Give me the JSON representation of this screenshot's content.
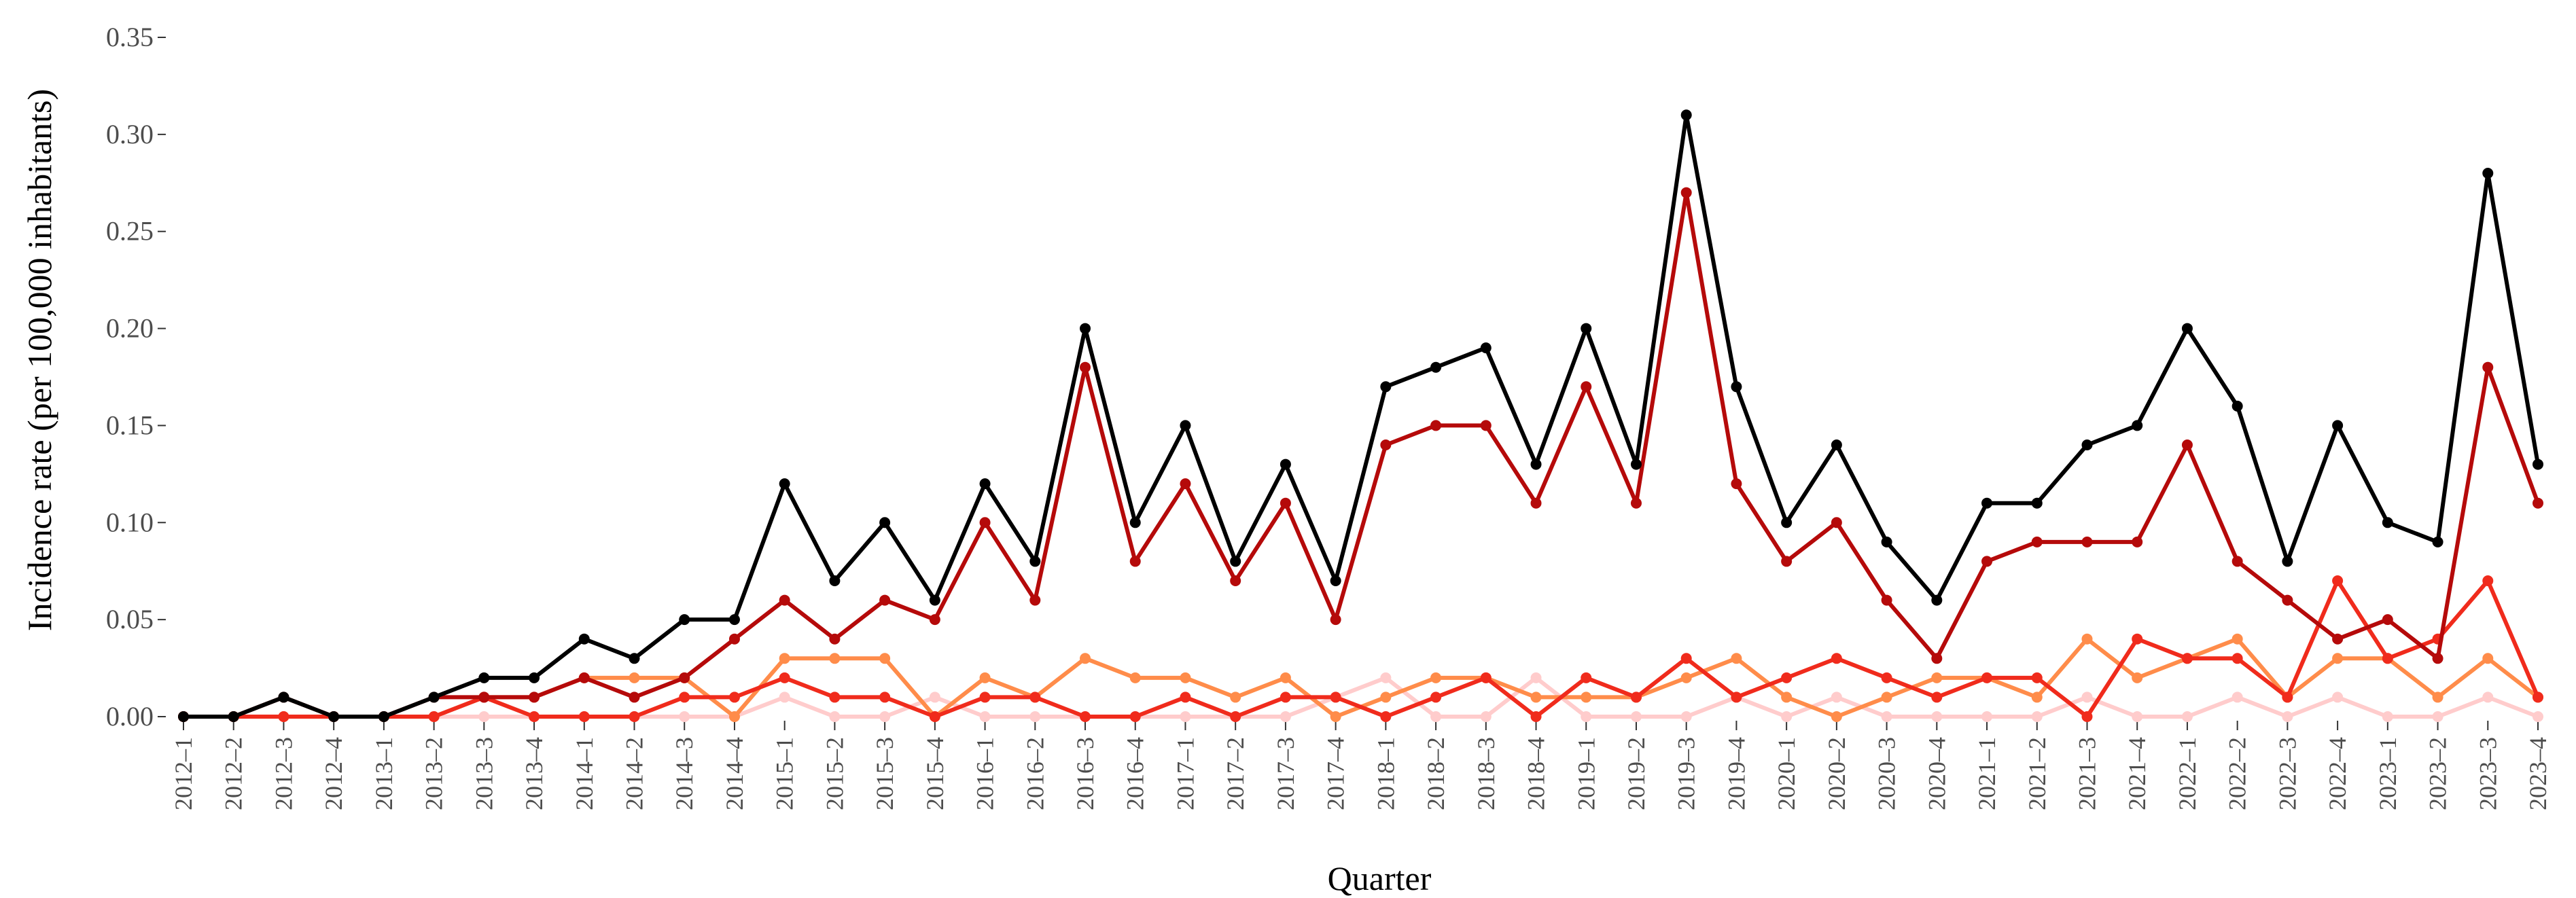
{
  "chart_data": {
    "type": "line",
    "title": "",
    "xlabel": "Quarter",
    "ylabel": "Incidence rate (per 100,000 inhabitants)",
    "ylim": [
      0,
      0.35
    ],
    "yticks": [
      0.0,
      0.05,
      0.1,
      0.15,
      0.2,
      0.25,
      0.3,
      0.35
    ],
    "grid": false,
    "legend": "none",
    "categories": [
      "2012–1",
      "2012–2",
      "2012–3",
      "2012–4",
      "2013–1",
      "2013–2",
      "2013–3",
      "2013–4",
      "2014–1",
      "2014–2",
      "2014–3",
      "2014–4",
      "2015–1",
      "2015–2",
      "2015–3",
      "2015–4",
      "2016–1",
      "2016–2",
      "2016–3",
      "2016–4",
      "2017–1",
      "2017–2",
      "2017–3",
      "2017–4",
      "2018–1",
      "2018–2",
      "2018–3",
      "2018–4",
      "2019–1",
      "2019–2",
      "2019–3",
      "2019–4",
      "2020–1",
      "2020–2",
      "2020–3",
      "2020–4",
      "2021–1",
      "2021–2",
      "2021–3",
      "2021–4",
      "2022–1",
      "2022–2",
      "2022–3",
      "2022–4",
      "2023–1",
      "2023–2",
      "2023–3",
      "2023–4"
    ],
    "series": [
      {
        "color": "#ffcccc",
        "values": [
          0,
          0,
          0,
          0,
          0,
          0,
          0,
          0,
          0,
          0,
          0,
          0,
          0.01,
          0,
          0,
          0.01,
          0,
          0,
          0,
          0,
          0,
          0,
          0,
          0.01,
          0.02,
          0,
          0,
          0.02,
          0,
          0,
          0,
          0.01,
          0,
          0.01,
          0,
          0,
          0,
          0,
          0.01,
          0,
          0,
          0.01,
          0,
          0.01,
          0,
          0,
          0.01,
          0
        ]
      },
      {
        "color": "#ff8c4a",
        "values": [
          0,
          0,
          0,
          0,
          0,
          0,
          0.01,
          0.01,
          0.02,
          0.02,
          0.02,
          0,
          0.03,
          0.03,
          0.03,
          0,
          0.02,
          0.01,
          0.03,
          0.02,
          0.02,
          0.01,
          0.02,
          0,
          0.01,
          0.02,
          0.02,
          0.01,
          0.01,
          0.01,
          0.02,
          0.03,
          0.01,
          0,
          0.01,
          0.02,
          0.02,
          0.01,
          0.04,
          0.02,
          0.03,
          0.04,
          0.01,
          0.03,
          0.03,
          0.01,
          0.03,
          0.01
        ]
      },
      {
        "color": "#f02b1c",
        "values": [
          0,
          0,
          0,
          0,
          0,
          0,
          0.01,
          0,
          0,
          0,
          0.01,
          0.01,
          0.02,
          0.01,
          0.01,
          0,
          0.01,
          0.01,
          0,
          0,
          0.01,
          0,
          0.01,
          0.01,
          0,
          0.01,
          0.02,
          0,
          0.02,
          0.01,
          0.03,
          0.01,
          0.02,
          0.03,
          0.02,
          0.01,
          0.02,
          0.02,
          0,
          0.04,
          0.03,
          0.03,
          0.01,
          0.07,
          0.03,
          0.04,
          0.07,
          0.01
        ]
      },
      {
        "color": "#b50a0a",
        "values": [
          0,
          0,
          0.01,
          0,
          0,
          0.01,
          0.01,
          0.01,
          0.02,
          0.01,
          0.02,
          0.04,
          0.06,
          0.04,
          0.06,
          0.05,
          0.1,
          0.06,
          0.18,
          0.08,
          0.12,
          0.07,
          0.11,
          0.05,
          0.14,
          0.15,
          0.15,
          0.11,
          0.17,
          0.11,
          0.27,
          0.12,
          0.08,
          0.1,
          0.06,
          0.03,
          0.08,
          0.09,
          0.09,
          0.09,
          0.14,
          0.08,
          0.06,
          0.04,
          0.05,
          0.03,
          0.18,
          0.11
        ]
      },
      {
        "color": "#000000",
        "values": [
          0,
          0,
          0.01,
          0,
          0,
          0.01,
          0.02,
          0.02,
          0.04,
          0.03,
          0.05,
          0.05,
          0.12,
          0.07,
          0.1,
          0.06,
          0.12,
          0.08,
          0.2,
          0.1,
          0.15,
          0.08,
          0.13,
          0.07,
          0.17,
          0.18,
          0.19,
          0.13,
          0.2,
          0.13,
          0.31,
          0.17,
          0.1,
          0.14,
          0.09,
          0.06,
          0.11,
          0.11,
          0.14,
          0.15,
          0.2,
          0.16,
          0.08,
          0.15,
          0.1,
          0.09,
          0.28,
          0.13
        ]
      }
    ]
  }
}
